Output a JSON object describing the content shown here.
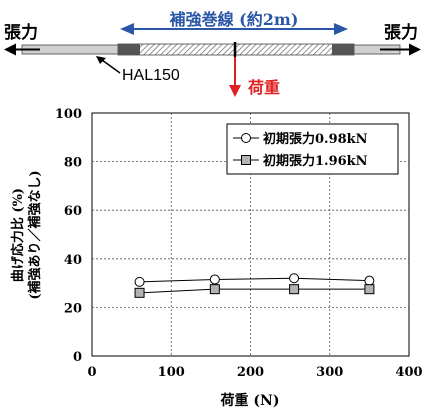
{
  "diagram": {
    "tension_left": "張力",
    "tension_right": "張力",
    "reinforcement_label": "補強巻線 (約2m)",
    "conductor_label": "HAL150",
    "load_label": "荷重"
  },
  "colors": {
    "blue": "#2b56a8",
    "red": "#e02020",
    "black": "#000000"
  },
  "chart_data": {
    "type": "line",
    "xlabel": "荷重 (N)",
    "ylabel_lines": [
      "曲げ応力比 (%)",
      "(補強あり／補強なし)"
    ],
    "xlim": [
      0,
      400
    ],
    "ylim": [
      0,
      100
    ],
    "xticks": [
      0,
      100,
      200,
      300,
      400
    ],
    "yticks": [
      0,
      20,
      40,
      60,
      80,
      100
    ],
    "grid": true,
    "legend_position": "top-right",
    "series": [
      {
        "name": "初期張力0.98kN",
        "marker": "circle",
        "x": [
          60,
          155,
          255,
          350
        ],
        "values": [
          30.5,
          31.5,
          32,
          31
        ]
      },
      {
        "name": "初期張力1.96kN",
        "marker": "square",
        "x": [
          60,
          155,
          255,
          350
        ],
        "values": [
          26,
          27.5,
          27.5,
          27.5
        ]
      }
    ]
  }
}
